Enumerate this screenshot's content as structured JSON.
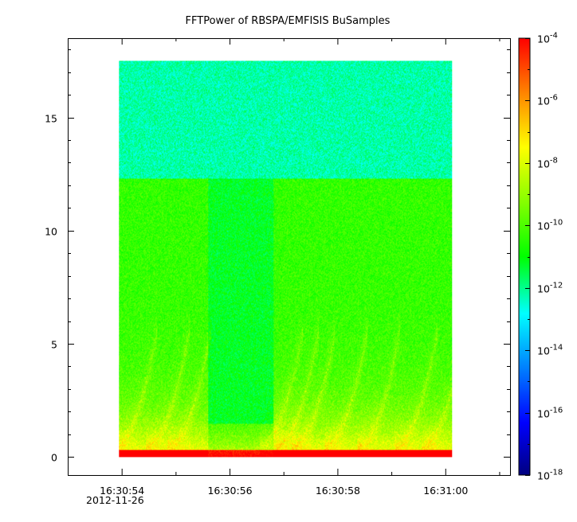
{
  "chart_data": {
    "type": "heatmap",
    "title": "FFTPower of RBSPA/EMFISIS  BuSamples",
    "xlabel": "",
    "ylabel": "",
    "x_axis": {
      "type": "time",
      "range": [
        "16:30:53.0",
        "16:31:01.2"
      ],
      "ticks": [
        "16:30:54",
        "16:30:56",
        "16:30:58",
        "16:31:00"
      ],
      "tick_values_s": [
        54,
        56,
        58,
        60
      ],
      "minor_ticks_s": [
        55,
        57,
        59,
        61
      ],
      "date_label": "2012-11-26"
    },
    "y_axis": {
      "range": [
        -0.8,
        18.5
      ],
      "ticks": [
        "0",
        "5",
        "10",
        "15"
      ],
      "tick_values": [
        0,
        5,
        10,
        15
      ]
    },
    "colorbar": {
      "scale": "log",
      "range": [
        1e-18,
        0.0001
      ],
      "tick_base": "10",
      "tick_exponents": [
        "-4",
        "-6",
        "-8",
        "-10",
        "-12",
        "-14",
        "-16",
        "-18"
      ],
      "colormap": [
        "#00007f",
        "#0000ff",
        "#00ffff",
        "#00ff00",
        "#ffff00",
        "#ff7f00",
        "#ff0000"
      ]
    },
    "data_extent": {
      "x_start_s": 53.95,
      "x_end_s": 60.12,
      "y_min": 0,
      "y_max": 17.5
    },
    "background_level_log10": {
      "upper_band": -12.2,
      "lower_band": -10.3,
      "band_edge_y": 12.3,
      "quiet_time_start_s": 55.6,
      "quiet_time_end_s": 56.8
    },
    "grid": false,
    "legend": "colorbar-right"
  }
}
